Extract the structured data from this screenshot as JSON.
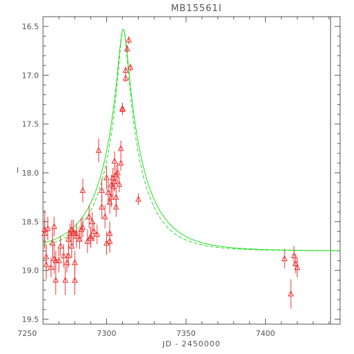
{
  "chart_data": {
    "type": "scatter",
    "title": "MB15561I",
    "xlabel": "JD - 2450000",
    "ylabel": "I",
    "xlim": [
      7260,
      7447
    ],
    "ylim": [
      19.55,
      16.4
    ],
    "y_inverted": true,
    "x_ticks": [
      "7250",
      "7300",
      "7350",
      "7400"
    ],
    "x_tick_values": [
      7250,
      7300,
      7350,
      7400
    ],
    "y_ticks": [
      "16.5",
      "17.0",
      "17.5",
      "18.0",
      "18.5",
      "19.0",
      "19.5"
    ],
    "y_tick_values": [
      16.5,
      17.0,
      17.5,
      18.0,
      18.5,
      19.0,
      19.5
    ],
    "grid": false,
    "vertical_marker_x": 7441,
    "colors": {
      "points": "#ee3333",
      "model": "#22dd22",
      "axis": "#555555",
      "text": "#555555"
    },
    "observations": [
      {
        "x": 7261,
        "y": 18.58,
        "err": 0.2
      },
      {
        "x": 7261,
        "y": 18.62,
        "err": 0.15
      },
      {
        "x": 7262,
        "y": 18.86,
        "err": 0.12
      },
      {
        "x": 7262,
        "y": 18.94,
        "err": 0.15
      },
      {
        "x": 7263,
        "y": 18.57,
        "err": 0.12
      },
      {
        "x": 7265,
        "y": 18.97,
        "err": 0.1
      },
      {
        "x": 7266,
        "y": 18.72,
        "err": 0.15
      },
      {
        "x": 7267,
        "y": 18.55,
        "err": 0.1
      },
      {
        "x": 7267,
        "y": 18.88,
        "err": 0.15
      },
      {
        "x": 7268,
        "y": 19.1,
        "err": 0.15
      },
      {
        "x": 7268,
        "y": 18.9,
        "err": 0.1
      },
      {
        "x": 7270,
        "y": 18.9,
        "err": 0.12
      },
      {
        "x": 7271,
        "y": 18.75,
        "err": 0.1
      },
      {
        "x": 7273,
        "y": 18.85,
        "err": 0.12
      },
      {
        "x": 7274,
        "y": 19.1,
        "err": 0.15
      },
      {
        "x": 7275,
        "y": 18.92,
        "err": 0.1
      },
      {
        "x": 7276,
        "y": 18.85,
        "err": 0.12
      },
      {
        "x": 7276,
        "y": 18.68,
        "err": 0.1
      },
      {
        "x": 7277,
        "y": 18.62,
        "err": 0.1
      },
      {
        "x": 7278,
        "y": 18.58,
        "err": 0.1
      },
      {
        "x": 7278,
        "y": 18.75,
        "err": 0.12
      },
      {
        "x": 7279,
        "y": 18.6,
        "err": 0.12
      },
      {
        "x": 7279,
        "y": 18.62,
        "err": 0.12
      },
      {
        "x": 7280,
        "y": 18.92,
        "err": 0.12
      },
      {
        "x": 7280,
        "y": 19.1,
        "err": 0.15
      },
      {
        "x": 7281,
        "y": 18.65,
        "err": 0.12
      },
      {
        "x": 7281,
        "y": 18.62,
        "err": 0.1
      },
      {
        "x": 7283,
        "y": 18.68,
        "err": 0.1
      },
      {
        "x": 7284,
        "y": 18.58,
        "err": 0.12
      },
      {
        "x": 7285,
        "y": 18.18,
        "err": 0.12
      },
      {
        "x": 7285,
        "y": 18.56,
        "err": 0.1
      },
      {
        "x": 7288,
        "y": 18.7,
        "err": 0.12
      },
      {
        "x": 7289,
        "y": 18.45,
        "err": 0.12
      },
      {
        "x": 7290,
        "y": 18.65,
        "err": 0.1
      },
      {
        "x": 7290,
        "y": 18.67,
        "err": 0.1
      },
      {
        "x": 7291,
        "y": 18.5,
        "err": 0.1
      },
      {
        "x": 7292,
        "y": 18.6,
        "err": 0.1
      },
      {
        "x": 7294,
        "y": 18.63,
        "err": 0.1
      },
      {
        "x": 7295,
        "y": 17.77,
        "err": 0.12
      },
      {
        "x": 7297,
        "y": 18.18,
        "err": 0.12
      },
      {
        "x": 7297,
        "y": 18.35,
        "err": 0.12
      },
      {
        "x": 7299,
        "y": 18.45,
        "err": 0.12
      },
      {
        "x": 7300,
        "y": 18.05,
        "err": 0.12
      },
      {
        "x": 7300,
        "y": 18.72,
        "err": 0.12
      },
      {
        "x": 7301,
        "y": 18.2,
        "err": 0.12
      },
      {
        "x": 7302,
        "y": 18.62,
        "err": 0.12
      },
      {
        "x": 7302,
        "y": 18.7,
        "err": 0.12
      },
      {
        "x": 7302,
        "y": 18.3,
        "err": 0.12
      },
      {
        "x": 7303,
        "y": 18.12,
        "err": 0.1
      },
      {
        "x": 7303,
        "y": 18.25,
        "err": 0.1
      },
      {
        "x": 7304,
        "y": 18.05,
        "err": 0.1
      },
      {
        "x": 7304,
        "y": 18.14,
        "err": 0.1
      },
      {
        "x": 7305,
        "y": 18.09,
        "err": 0.1
      },
      {
        "x": 7305,
        "y": 17.88,
        "err": 0.1
      },
      {
        "x": 7306,
        "y": 18.02,
        "err": 0.1
      },
      {
        "x": 7306,
        "y": 18.35,
        "err": 0.1
      },
      {
        "x": 7306,
        "y": 18.25,
        "err": 0.1
      },
      {
        "x": 7307,
        "y": 18.0,
        "err": 0.1
      },
      {
        "x": 7308,
        "y": 18.12,
        "err": 0.08
      },
      {
        "x": 7309,
        "y": 17.75,
        "err": 0.08
      },
      {
        "x": 7309,
        "y": 17.9,
        "err": 0.08
      },
      {
        "x": 7310,
        "y": 17.34,
        "err": 0.06
      },
      {
        "x": 7310,
        "y": 17.35,
        "err": 0.06
      },
      {
        "x": 7312,
        "y": 17.03,
        "err": 0.04
      },
      {
        "x": 7312,
        "y": 16.95,
        "err": 0.04
      },
      {
        "x": 7313,
        "y": 16.73,
        "err": 0.04
      },
      {
        "x": 7314,
        "y": 16.64,
        "err": 0.04
      },
      {
        "x": 7315,
        "y": 16.92,
        "err": 0.04
      },
      {
        "x": 7320,
        "y": 18.27,
        "err": 0.06
      },
      {
        "x": 7412,
        "y": 18.88,
        "err": 0.1
      },
      {
        "x": 7416,
        "y": 19.24,
        "err": 0.15
      },
      {
        "x": 7418,
        "y": 18.85,
        "err": 0.1
      },
      {
        "x": 7419,
        "y": 18.93,
        "err": 0.1
      },
      {
        "x": 7420,
        "y": 18.97,
        "err": 0.1
      }
    ],
    "model": {
      "baseline_mag": 18.8,
      "peak_mag": 16.53,
      "t0": 7310.5,
      "tE": 28,
      "series": [
        {
          "style": "solid",
          "u0": 0.11,
          "tE": 28
        },
        {
          "style": "dashed",
          "u0": 0.108,
          "tE": 25
        }
      ]
    }
  }
}
